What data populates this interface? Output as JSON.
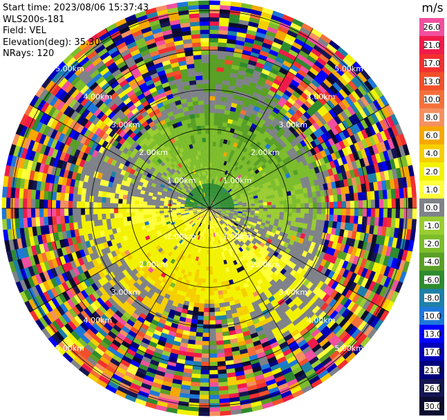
{
  "header": {
    "start_time": "Start time: 2023/08/06 15:37:43",
    "instrument": "WLS200s-181",
    "field": "Field: VEL",
    "elevation": "Elevation(deg): 35.30",
    "nrays": "NRays: 120"
  },
  "range_rings": [
    {
      "range_km": 1,
      "label": "1.00km"
    },
    {
      "range_km": 2,
      "label": "2.00km"
    },
    {
      "range_km": 3,
      "label": "3.00km"
    },
    {
      "range_km": 4,
      "label": "4.00km"
    },
    {
      "range_km": 5,
      "label": "5.00km"
    }
  ],
  "max_range_km": 5.25,
  "spoke_angles_deg": [
    0,
    30,
    60,
    90,
    120,
    150,
    180,
    210,
    240,
    270,
    300,
    330
  ],
  "colorbar": {
    "unit": "m/s",
    "bins": [
      {
        "label": "26.0",
        "color": "#f0509f"
      },
      {
        "label": "21.0",
        "color": "#f01a4a"
      },
      {
        "label": "17.0",
        "color": "#f22f2f"
      },
      {
        "label": "13.0",
        "color": "#f24f2a"
      },
      {
        "label": "10.0",
        "color": "#f4703a"
      },
      {
        "label": "8.0",
        "color": "#f59060"
      },
      {
        "label": "6.0",
        "color": "#f6a800"
      },
      {
        "label": "4.0",
        "color": "#f5cf00"
      },
      {
        "label": "2.0",
        "color": "#f2f200"
      },
      {
        "label": "1.0",
        "color": "#ffff3c"
      },
      {
        "label": "0.0",
        "color": "#7f8389"
      },
      {
        "label": "-1.0",
        "color": "#9acd32"
      },
      {
        "label": "-2.0",
        "color": "#7cbd2c"
      },
      {
        "label": "-4.0",
        "color": "#5a9f26"
      },
      {
        "label": "-6.0",
        "color": "#2e8b2e"
      },
      {
        "label": "-8.0",
        "color": "#1e80a8"
      },
      {
        "label": "-10.0",
        "color": "#1e78d8"
      },
      {
        "label": "-13.0",
        "color": "#0000ff"
      },
      {
        "label": "-17.0",
        "color": "#0000b8"
      },
      {
        "label": "-21.0",
        "color": "#00007c"
      },
      {
        "label": "-26.0",
        "color": "#151552"
      },
      {
        "label": "-30.0",
        "color": "#0c0c30"
      }
    ]
  },
  "colors": {
    "background": "#ffffff",
    "ring": "#000000",
    "ring_label": "#ffffff"
  }
}
